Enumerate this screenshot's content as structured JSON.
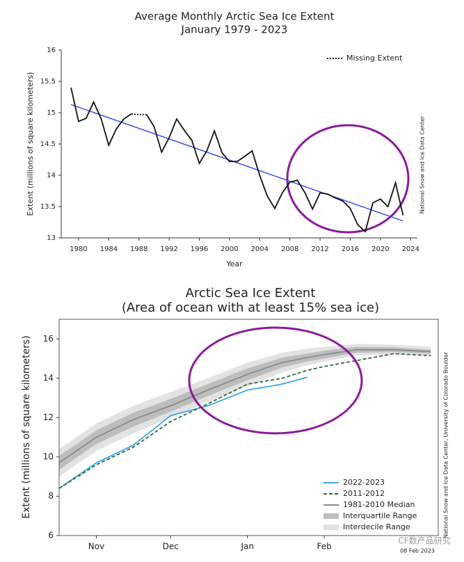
{
  "chart_data": [
    {
      "type": "line",
      "title": "Average Monthly Arctic Sea Ice Extent",
      "subtitle": "January 1979 - 2023",
      "x_label": "Year",
      "y_label": "Extent (millions of square kilometers)",
      "annotation": "National Snow and Ice Data Center",
      "x": [
        1979,
        1980,
        1981,
        1982,
        1983,
        1984,
        1985,
        1986,
        1987,
        1988,
        1989,
        1990,
        1991,
        1992,
        1993,
        1994,
        1995,
        1996,
        1997,
        1998,
        1999,
        2000,
        2001,
        2002,
        2003,
        2004,
        2005,
        2006,
        2007,
        2008,
        2009,
        2010,
        2011,
        2012,
        2013,
        2014,
        2015,
        2016,
        2017,
        2018,
        2019,
        2020,
        2021,
        2022,
        2023
      ],
      "series": [
        {
          "name": null,
          "color": "#111111",
          "style": "solid",
          "values": [
            15.4,
            14.86,
            14.91,
            15.17,
            14.9,
            14.48,
            14.74,
            14.9,
            14.98,
            null,
            14.97,
            14.78,
            14.37,
            14.6,
            14.9,
            14.72,
            14.56,
            14.19,
            14.39,
            14.71,
            14.36,
            14.22,
            14.22,
            14.3,
            14.39,
            14.0,
            13.67,
            13.47,
            13.72,
            13.89,
            13.92,
            13.72,
            13.46,
            13.72,
            13.7,
            13.64,
            13.59,
            13.47,
            13.21,
            13.1,
            13.56,
            13.62,
            13.5,
            13.88,
            13.36
          ]
        },
        {
          "name": "Missing Extent",
          "color": "#111111",
          "style": "dotted",
          "values": [
            null,
            null,
            null,
            null,
            null,
            null,
            null,
            null,
            14.98,
            14.97,
            14.97,
            null,
            null,
            null,
            null,
            null,
            null,
            null,
            null,
            null,
            null,
            null,
            null,
            null,
            null,
            null,
            null,
            null,
            null,
            null,
            null,
            null,
            null,
            null,
            null,
            null,
            null,
            null,
            null,
            null,
            null,
            null,
            null,
            null,
            null
          ]
        }
      ],
      "trend": {
        "color": "#3c50e8",
        "x": [
          1979,
          2023
        ],
        "values": [
          15.13,
          13.27
        ]
      },
      "xlim": [
        1977.7,
        2024.9
      ],
      "ylim": [
        13,
        16
      ],
      "xticks": [
        1980,
        1984,
        1988,
        1992,
        1996,
        2000,
        2004,
        2008,
        2012,
        2016,
        2020,
        2024
      ],
      "yticks": [
        13,
        13.5,
        14,
        14.5,
        15,
        15.5,
        16
      ],
      "legend": "upper right"
    },
    {
      "type": "line",
      "title": "Arctic Sea Ice Extent",
      "subtitle": "(Area of ocean with at least 15% sea ice)",
      "y_label": "Extent (millions of square kilometers)",
      "annotation": "National Snow and Ice Data Center, University of Colorado Boulder",
      "date": "08 Feb 2023",
      "watermark": "CF数产品研究",
      "x": [
        30,
        45,
        60,
        75,
        90,
        106,
        120,
        130,
        137,
        150,
        165,
        180
      ],
      "bands": [
        {
          "name": "Interdecile Range",
          "color": "#e2e2e2",
          "lower": [
            9.0,
            10.3,
            11.2,
            12.0,
            12.8,
            13.6,
            14.3,
            14.65,
            14.85,
            15.15,
            15.2,
            15.15
          ],
          "upper": [
            10.4,
            11.7,
            12.6,
            13.3,
            14.0,
            14.8,
            15.3,
            15.5,
            15.6,
            15.75,
            15.7,
            15.6
          ]
        },
        {
          "name": "Interquartile Range",
          "color": "#bdbdbd",
          "lower": [
            9.35,
            10.65,
            11.55,
            12.3,
            13.1,
            13.9,
            14.55,
            14.85,
            15.0,
            15.3,
            15.33,
            15.25
          ],
          "upper": [
            10.05,
            11.35,
            12.25,
            12.95,
            13.7,
            14.5,
            15.05,
            15.25,
            15.4,
            15.6,
            15.57,
            15.45
          ]
        }
      ],
      "series": [
        {
          "name": "2022-2023",
          "color": "#3aa7e8",
          "style": "solid",
          "values": [
            8.4,
            9.7,
            10.6,
            12.1,
            12.6,
            13.4,
            13.7,
            14.05,
            null,
            null,
            null,
            null
          ]
        },
        {
          "name": "2011-2012",
          "color": "#2e6b3a",
          "style": "dashed",
          "values": [
            8.4,
            9.6,
            10.5,
            11.8,
            12.7,
            13.7,
            14.0,
            14.4,
            14.6,
            14.9,
            15.25,
            15.15
          ]
        },
        {
          "name": "1981-2010 Median",
          "color": "#8a8a8a",
          "style": "solid",
          "values": [
            9.7,
            11.0,
            11.9,
            12.6,
            13.4,
            14.2,
            14.8,
            15.05,
            15.2,
            15.45,
            15.45,
            15.35
          ]
        }
      ],
      "xlim": [
        30,
        183
      ],
      "ylim": [
        6,
        17
      ],
      "xticks": [
        {
          "value": 45,
          "label": "Nov"
        },
        {
          "value": 75,
          "label": "Dec"
        },
        {
          "value": 106,
          "label": "Jan"
        },
        {
          "value": 137,
          "label": "Feb"
        }
      ],
      "yticks": [
        6,
        8,
        10,
        12,
        14,
        16
      ],
      "legend": "lower right"
    }
  ]
}
